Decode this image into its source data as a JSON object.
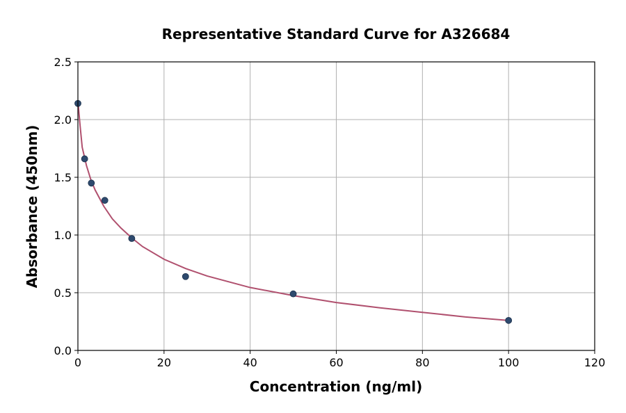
{
  "chart_data": {
    "type": "scatter",
    "title": "Representative Standard Curve for A326684",
    "xlabel": "Concentration (ng/ml)",
    "ylabel": "Absorbance (450nm)",
    "xlim": [
      0,
      120
    ],
    "ylim": [
      0,
      2.5
    ],
    "x_ticks": [
      "0",
      "20",
      "40",
      "60",
      "80",
      "100",
      "120"
    ],
    "y_ticks": [
      "0.0",
      "0.5",
      "1.0",
      "1.5",
      "2.0",
      "2.5"
    ],
    "grid": true,
    "series": [
      {
        "type": "scatter",
        "color": "#2e4a6e",
        "points": [
          {
            "x": 0,
            "y": 2.14
          },
          {
            "x": 1.56,
            "y": 1.66
          },
          {
            "x": 3.12,
            "y": 1.45
          },
          {
            "x": 6.25,
            "y": 1.3
          },
          {
            "x": 12.5,
            "y": 0.97
          },
          {
            "x": 25,
            "y": 0.64
          },
          {
            "x": 50,
            "y": 0.49
          },
          {
            "x": 100,
            "y": 0.26
          }
        ]
      },
      {
        "type": "line",
        "color": "#b0506e",
        "points": [
          {
            "x": 0.05,
            "y": 2.14
          },
          {
            "x": 0.5,
            "y": 1.95
          },
          {
            "x": 1,
            "y": 1.76
          },
          {
            "x": 2,
            "y": 1.6
          },
          {
            "x": 3,
            "y": 1.48
          },
          {
            "x": 4,
            "y": 1.39
          },
          {
            "x": 6,
            "y": 1.25
          },
          {
            "x": 8,
            "y": 1.14
          },
          {
            "x": 10,
            "y": 1.06
          },
          {
            "x": 12.5,
            "y": 0.975
          },
          {
            "x": 15,
            "y": 0.9
          },
          {
            "x": 20,
            "y": 0.79
          },
          {
            "x": 25,
            "y": 0.71
          },
          {
            "x": 30,
            "y": 0.645
          },
          {
            "x": 40,
            "y": 0.545
          },
          {
            "x": 50,
            "y": 0.475
          },
          {
            "x": 60,
            "y": 0.415
          },
          {
            "x": 70,
            "y": 0.37
          },
          {
            "x": 80,
            "y": 0.33
          },
          {
            "x": 90,
            "y": 0.29
          },
          {
            "x": 100,
            "y": 0.26
          }
        ]
      }
    ]
  }
}
